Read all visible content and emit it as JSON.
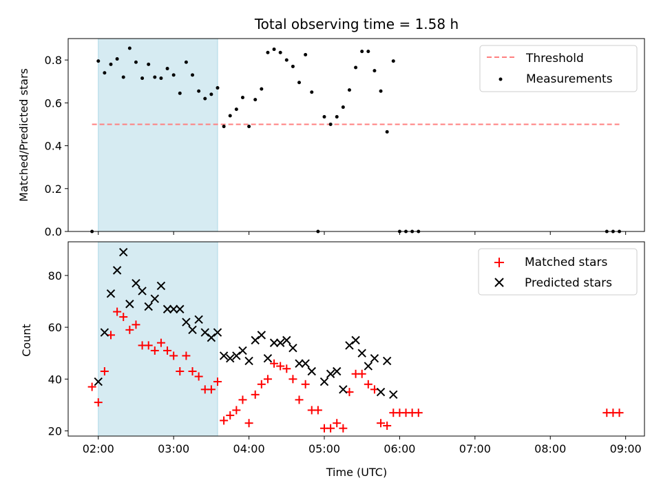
{
  "chart_data": [
    {
      "type": "scatter",
      "title": "Total observing time = 1.58 h",
      "xlabel": "",
      "ylabel": "Matched/Predicted stars",
      "ylim": [
        0,
        0.9
      ],
      "yticks": [
        "0.0",
        "0.2",
        "0.4",
        "0.6",
        "0.8"
      ],
      "ytick_values": [
        0,
        0.2,
        0.4,
        0.6,
        0.8
      ],
      "xlim": [
        "01:36",
        "09:15"
      ],
      "shaded_interval": [
        "02:00",
        "03:35"
      ],
      "shade_color": "#add8e6",
      "threshold": {
        "name": "Threshold",
        "y": 0.5,
        "x_start": "01:55",
        "x_end": "08:55",
        "color": "#ff7f7f"
      },
      "series": [
        {
          "name": "Measurements",
          "color": "#000000",
          "points": [
            [
              "01:55",
              0.0
            ],
            [
              "02:00",
              0.795
            ],
            [
              "02:05",
              0.74
            ],
            [
              "02:10",
              0.78
            ],
            [
              "02:15",
              0.805
            ],
            [
              "02:20",
              0.72
            ],
            [
              "02:25",
              0.855
            ],
            [
              "02:30",
              0.79
            ],
            [
              "02:35",
              0.715
            ],
            [
              "02:40",
              0.78
            ],
            [
              "02:45",
              0.72
            ],
            [
              "02:50",
              0.715
            ],
            [
              "02:55",
              0.76
            ],
            [
              "03:00",
              0.73
            ],
            [
              "03:05",
              0.645
            ],
            [
              "03:10",
              0.79
            ],
            [
              "03:15",
              0.73
            ],
            [
              "03:20",
              0.655
            ],
            [
              "03:25",
              0.62
            ],
            [
              "03:30",
              0.64
            ],
            [
              "03:35",
              0.67
            ],
            [
              "03:40",
              0.49
            ],
            [
              "03:45",
              0.54
            ],
            [
              "03:50",
              0.57
            ],
            [
              "03:55",
              0.625
            ],
            [
              "04:00",
              0.49
            ],
            [
              "04:05",
              0.615
            ],
            [
              "04:10",
              0.665
            ],
            [
              "04:15",
              0.835
            ],
            [
              "04:20",
              0.85
            ],
            [
              "04:25",
              0.835
            ],
            [
              "04:30",
              0.8
            ],
            [
              "04:35",
              0.77
            ],
            [
              "04:40",
              0.695
            ],
            [
              "04:45",
              0.825
            ],
            [
              "04:50",
              0.65
            ],
            [
              "04:55",
              0.0
            ],
            [
              "05:00",
              0.535
            ],
            [
              "05:05",
              0.5
            ],
            [
              "05:10",
              0.535
            ],
            [
              "05:15",
              0.58
            ],
            [
              "05:20",
              0.66
            ],
            [
              "05:25",
              0.765
            ],
            [
              "05:30",
              0.84
            ],
            [
              "05:35",
              0.84
            ],
            [
              "05:40",
              0.75
            ],
            [
              "05:45",
              0.655
            ],
            [
              "05:50",
              0.465
            ],
            [
              "05:55",
              0.795
            ],
            [
              "06:00",
              0.0
            ],
            [
              "06:05",
              0.0
            ],
            [
              "06:10",
              0.0
            ],
            [
              "06:15",
              0.0
            ],
            [
              "08:45",
              0.0
            ],
            [
              "08:50",
              0.0
            ],
            [
              "08:55",
              0.0
            ]
          ]
        }
      ],
      "legend": {
        "position": "top-right",
        "entries": [
          "Threshold",
          "Measurements"
        ]
      }
    },
    {
      "type": "scatter",
      "title": "",
      "xlabel": "Time (UTC)",
      "ylabel": "Count",
      "ylim": [
        18,
        93
      ],
      "yticks": [
        "20",
        "40",
        "60",
        "80"
      ],
      "ytick_values": [
        20,
        40,
        60,
        80
      ],
      "xlim": [
        "01:36",
        "09:15"
      ],
      "xticks": [
        "02:00",
        "03:00",
        "04:00",
        "05:00",
        "06:00",
        "07:00",
        "08:00",
        "09:00"
      ],
      "shaded_interval": [
        "02:00",
        "03:35"
      ],
      "shade_color": "#add8e6",
      "series": [
        {
          "name": "Matched stars",
          "marker": "plus",
          "color": "#ff0000",
          "points": [
            [
              "01:55",
              37
            ],
            [
              "02:00",
              31
            ],
            [
              "02:05",
              43
            ],
            [
              "02:10",
              57
            ],
            [
              "02:15",
              66
            ],
            [
              "02:20",
              64
            ],
            [
              "02:25",
              59
            ],
            [
              "02:30",
              61
            ],
            [
              "02:35",
              53
            ],
            [
              "02:40",
              53
            ],
            [
              "02:45",
              51
            ],
            [
              "02:50",
              54
            ],
            [
              "02:55",
              51
            ],
            [
              "03:00",
              49
            ],
            [
              "03:05",
              43
            ],
            [
              "03:10",
              49
            ],
            [
              "03:15",
              43
            ],
            [
              "03:20",
              41
            ],
            [
              "03:25",
              36
            ],
            [
              "03:30",
              36
            ],
            [
              "03:35",
              39
            ],
            [
              "03:40",
              24
            ],
            [
              "03:45",
              26
            ],
            [
              "03:50",
              28
            ],
            [
              "03:55",
              32
            ],
            [
              "04:00",
              23
            ],
            [
              "04:05",
              34
            ],
            [
              "04:10",
              38
            ],
            [
              "04:15",
              40
            ],
            [
              "04:20",
              46
            ],
            [
              "04:25",
              45
            ],
            [
              "04:30",
              44
            ],
            [
              "04:35",
              40
            ],
            [
              "04:40",
              32
            ],
            [
              "04:45",
              38
            ],
            [
              "04:50",
              28
            ],
            [
              "04:55",
              28
            ],
            [
              "05:00",
              21
            ],
            [
              "05:05",
              21
            ],
            [
              "05:10",
              23
            ],
            [
              "05:15",
              21
            ],
            [
              "05:20",
              35
            ],
            [
              "05:25",
              42
            ],
            [
              "05:30",
              42
            ],
            [
              "05:35",
              38
            ],
            [
              "05:40",
              36
            ],
            [
              "05:45",
              23
            ],
            [
              "05:50",
              22
            ],
            [
              "05:55",
              27
            ],
            [
              "06:00",
              27
            ],
            [
              "06:05",
              27
            ],
            [
              "06:10",
              27
            ],
            [
              "06:15",
              27
            ],
            [
              "08:45",
              27
            ],
            [
              "08:50",
              27
            ],
            [
              "08:55",
              27
            ]
          ]
        },
        {
          "name": "Predicted stars",
          "marker": "x",
          "color": "#000000",
          "points": [
            [
              "02:00",
              39
            ],
            [
              "02:05",
              58
            ],
            [
              "02:10",
              73
            ],
            [
              "02:15",
              82
            ],
            [
              "02:20",
              89
            ],
            [
              "02:25",
              69
            ],
            [
              "02:30",
              77
            ],
            [
              "02:35",
              74
            ],
            [
              "02:40",
              68
            ],
            [
              "02:45",
              71
            ],
            [
              "02:50",
              76
            ],
            [
              "02:55",
              67
            ],
            [
              "03:00",
              67
            ],
            [
              "03:05",
              67
            ],
            [
              "03:10",
              62
            ],
            [
              "03:15",
              59
            ],
            [
              "03:20",
              63
            ],
            [
              "03:25",
              58
            ],
            [
              "03:30",
              56
            ],
            [
              "03:35",
              58
            ],
            [
              "03:40",
              49
            ],
            [
              "03:45",
              48
            ],
            [
              "03:50",
              49
            ],
            [
              "03:55",
              51
            ],
            [
              "04:00",
              47
            ],
            [
              "04:05",
              55
            ],
            [
              "04:10",
              57
            ],
            [
              "04:15",
              48
            ],
            [
              "04:20",
              54
            ],
            [
              "04:25",
              54
            ],
            [
              "04:30",
              55
            ],
            [
              "04:35",
              52
            ],
            [
              "04:40",
              46
            ],
            [
              "04:45",
              46
            ],
            [
              "04:50",
              43
            ],
            [
              "05:00",
              39
            ],
            [
              "05:05",
              42
            ],
            [
              "05:10",
              43
            ],
            [
              "05:15",
              36
            ],
            [
              "05:20",
              53
            ],
            [
              "05:25",
              55
            ],
            [
              "05:30",
              50
            ],
            [
              "05:35",
              45
            ],
            [
              "05:40",
              48
            ],
            [
              "05:45",
              35
            ],
            [
              "05:50",
              47
            ],
            [
              "05:55",
              34
            ]
          ]
        }
      ],
      "legend": {
        "position": "top-right",
        "entries": [
          "Matched stars",
          "Predicted stars"
        ]
      }
    }
  ]
}
